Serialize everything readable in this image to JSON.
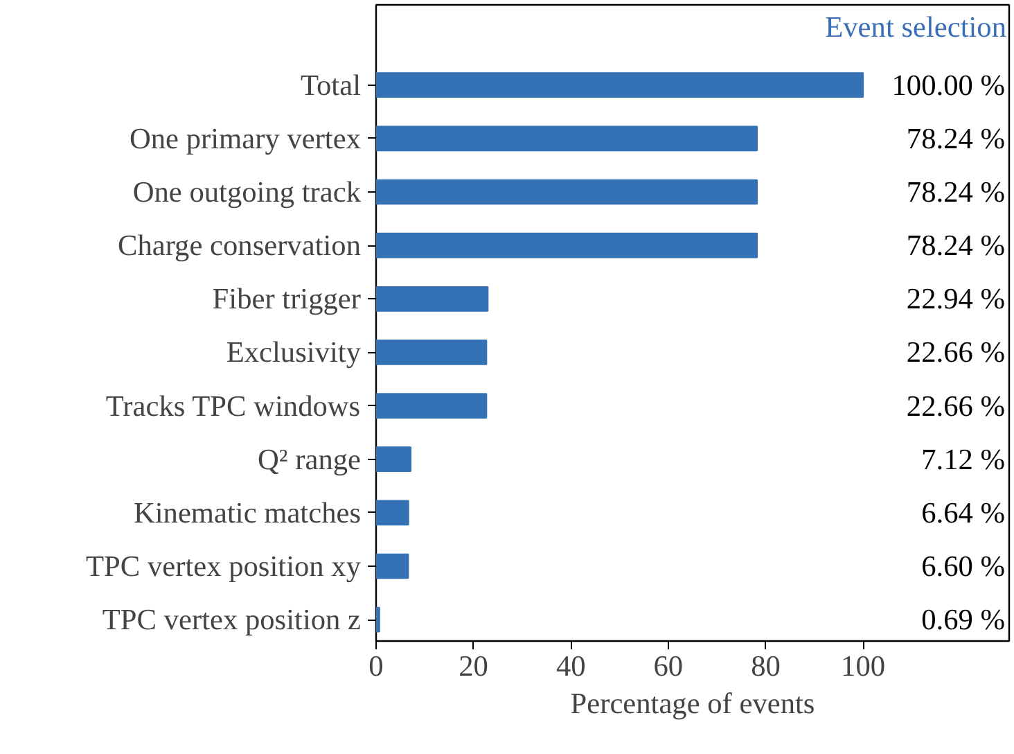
{
  "chart_data": {
    "type": "bar",
    "orientation": "horizontal",
    "title": "Event selection",
    "xlabel": "Percentage of events",
    "categories": [
      "Total",
      "One primary vertex",
      "One outgoing track",
      "Charge conservation",
      "Fiber trigger",
      "Exclusivity",
      "Tracks TPC windows",
      "Q² range",
      "Kinematic matches",
      "TPC vertex position xy",
      "TPC vertex position z"
    ],
    "values": [
      100.0,
      78.24,
      78.24,
      78.24,
      22.94,
      22.66,
      22.66,
      7.12,
      6.64,
      6.6,
      0.69
    ],
    "value_labels": [
      "100.00 %",
      "78.24 %",
      "78.24 %",
      "78.24 %",
      "22.94 %",
      "22.66 %",
      "22.66 %",
      "7.12 %",
      "6.64 %",
      "6.60 %",
      "0.69 %"
    ],
    "color": "#3572b5",
    "xlim": [
      0,
      130
    ],
    "xticks": [
      0,
      20,
      40,
      60,
      80,
      100
    ],
    "grid": false
  }
}
